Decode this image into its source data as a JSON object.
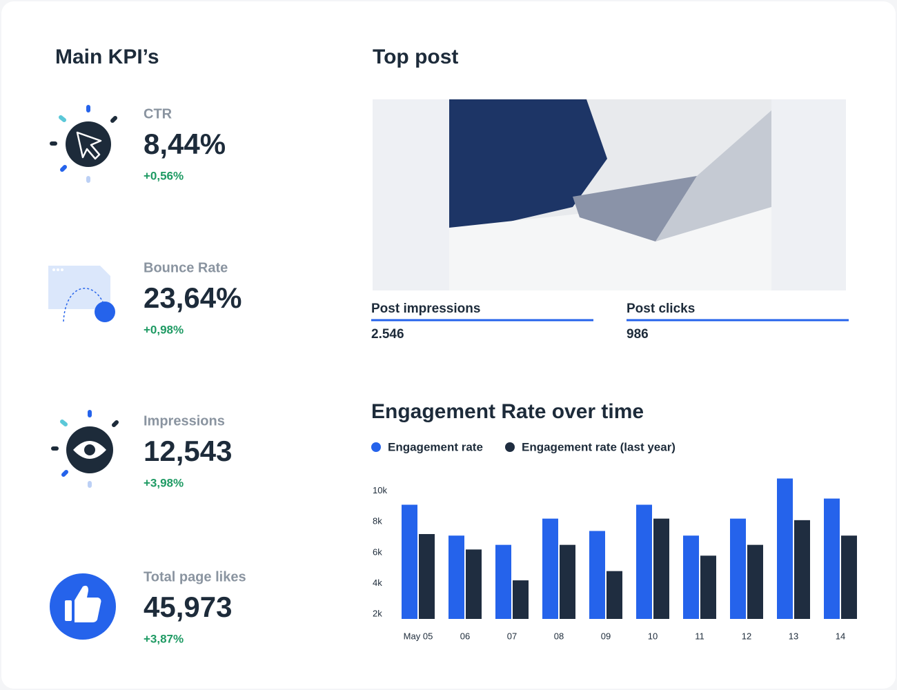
{
  "kpis": {
    "title": "Main KPI’s",
    "items": [
      {
        "label": "CTR",
        "value": "8,44%",
        "change": "+0,56%"
      },
      {
        "label": "Bounce Rate",
        "value": "23,64%",
        "change": "+0,98%"
      },
      {
        "label": "Impressions",
        "value": "12,543",
        "change": "+3,98%"
      },
      {
        "label": "Total page likes",
        "value": "45,973",
        "change": "+3,87%"
      }
    ]
  },
  "top_post": {
    "title": "Top post",
    "metrics": [
      {
        "label": "Post impressions",
        "value": "2.546"
      },
      {
        "label": "Post clicks",
        "value": "986"
      }
    ]
  },
  "chart_data": {
    "type": "bar",
    "title": "Engagement Rate over time",
    "categories": [
      "May 05",
      "06",
      "07",
      "08",
      "09",
      "10",
      "11",
      "12",
      "13",
      "14"
    ],
    "series": [
      {
        "name": "Engagement rate",
        "color": "#2563eb",
        "values": [
          9100,
          7100,
          6500,
          8200,
          7400,
          9100,
          7100,
          8200,
          10800,
          9500
        ]
      },
      {
        "name": "Engagement rate (last year)",
        "color": "#1f2d40",
        "values": [
          7200,
          6200,
          4200,
          6500,
          4800,
          8200,
          5800,
          6500,
          8100,
          7100
        ]
      }
    ],
    "ylim": [
      1700,
      11000
    ],
    "yticks": [
      {
        "value": 2000,
        "label": "2k"
      },
      {
        "value": 4000,
        "label": "4k"
      },
      {
        "value": 6000,
        "label": "6k"
      },
      {
        "value": 8000,
        "label": "8k"
      },
      {
        "value": 10000,
        "label": "10k"
      }
    ],
    "grid": false,
    "legend": "top-left"
  }
}
